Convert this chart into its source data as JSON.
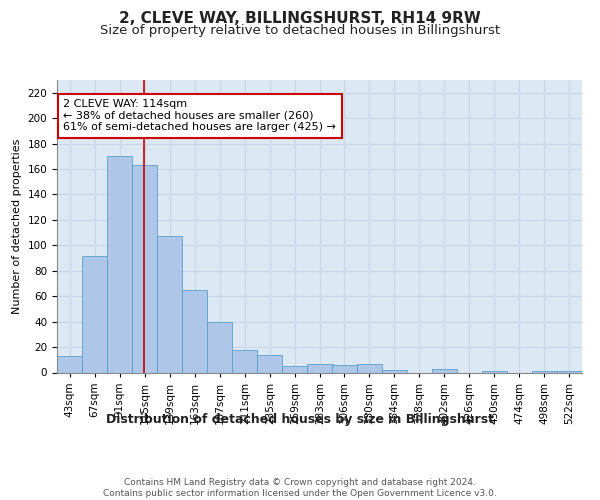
{
  "title": "2, CLEVE WAY, BILLINGSHURST, RH14 9RW",
  "subtitle": "Size of property relative to detached houses in Billingshurst",
  "xlabel": "Distribution of detached houses by size in Billingshurst",
  "ylabel": "Number of detached properties",
  "categories": [
    "43sqm",
    "67sqm",
    "91sqm",
    "115sqm",
    "139sqm",
    "163sqm",
    "187sqm",
    "211sqm",
    "235sqm",
    "259sqm",
    "283sqm",
    "306sqm",
    "330sqm",
    "354sqm",
    "378sqm",
    "402sqm",
    "426sqm",
    "450sqm",
    "474sqm",
    "498sqm",
    "522sqm"
  ],
  "cat_values": [
    43,
    67,
    91,
    115,
    139,
    163,
    187,
    211,
    235,
    259,
    283,
    306,
    330,
    354,
    378,
    402,
    426,
    450,
    474,
    498,
    522
  ],
  "values": [
    13,
    92,
    170,
    163,
    107,
    65,
    40,
    18,
    14,
    5,
    7,
    6,
    7,
    2,
    0,
    3,
    0,
    1,
    0,
    1,
    1
  ],
  "bar_color": "#aec6e8",
  "bar_edge_color": "#5a9ec8",
  "grid_color": "#c8d8e8",
  "background_color": "#dce8f4",
  "annotation_text": "2 CLEVE WAY: 114sqm\n← 38% of detached houses are smaller (260)\n61% of semi-detached houses are larger (425) →",
  "annotation_box_color": "#ffffff",
  "annotation_box_edge_color": "#cc0000",
  "vline_color": "#cc0000",
  "vline_x_data": 114,
  "ylim": [
    0,
    230
  ],
  "yticks": [
    0,
    20,
    40,
    60,
    80,
    100,
    120,
    140,
    160,
    180,
    200,
    220
  ],
  "footer": "Contains HM Land Registry data © Crown copyright and database right 2024.\nContains public sector information licensed under the Open Government Licence v3.0.",
  "title_fontsize": 11,
  "subtitle_fontsize": 9.5,
  "xlabel_fontsize": 9,
  "ylabel_fontsize": 8,
  "tick_fontsize": 7.5,
  "annotation_fontsize": 8,
  "footer_fontsize": 6.5
}
